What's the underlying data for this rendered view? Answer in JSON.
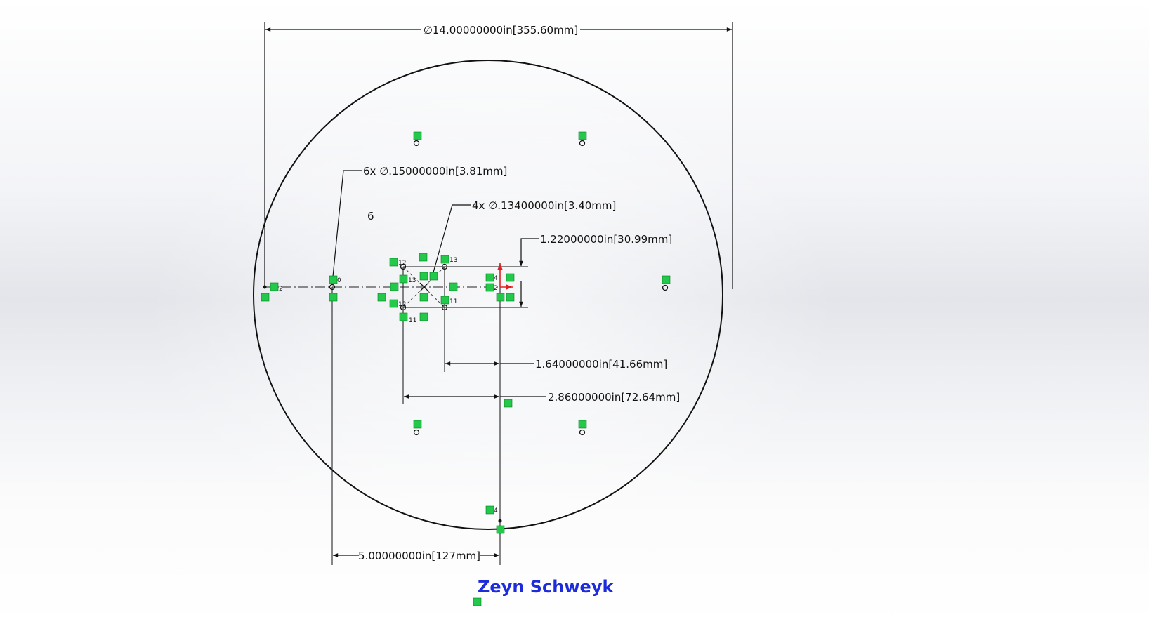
{
  "sketch": {
    "signature": "Zeyn Schweyk",
    "hole_count_label": "6",
    "dimensions": {
      "overall_diameter": "∅14.00000000in[355.60mm]",
      "bolt_holes": "6x ∅.15000000in[3.81mm]",
      "center_holes": "4x ∅.13400000in[3.40mm]",
      "vertical_spacing": "1.22000000in[30.99mm]",
      "inner_horizontal": "1.64000000in[41.66mm]",
      "outer_horizontal": "2.86000000in[72.64mm]",
      "offset_horizontal": "5.00000000in[127mm]"
    },
    "relation_labels": {
      "r2_left": "2",
      "r0_hole": "0",
      "r12_top": "12",
      "r12_bottom": "12",
      "r13_left": "13",
      "r13_top": "13",
      "r11_right": "11",
      "r11_bottom": "11",
      "r4_top": "4",
      "r4_bottom": "4",
      "r2_origin": "2"
    },
    "colors": {
      "relation_badge": "#22c94a",
      "origin_arrow": "#e02020",
      "signature": "#1c2bdc",
      "geometry": "#111111"
    }
  }
}
